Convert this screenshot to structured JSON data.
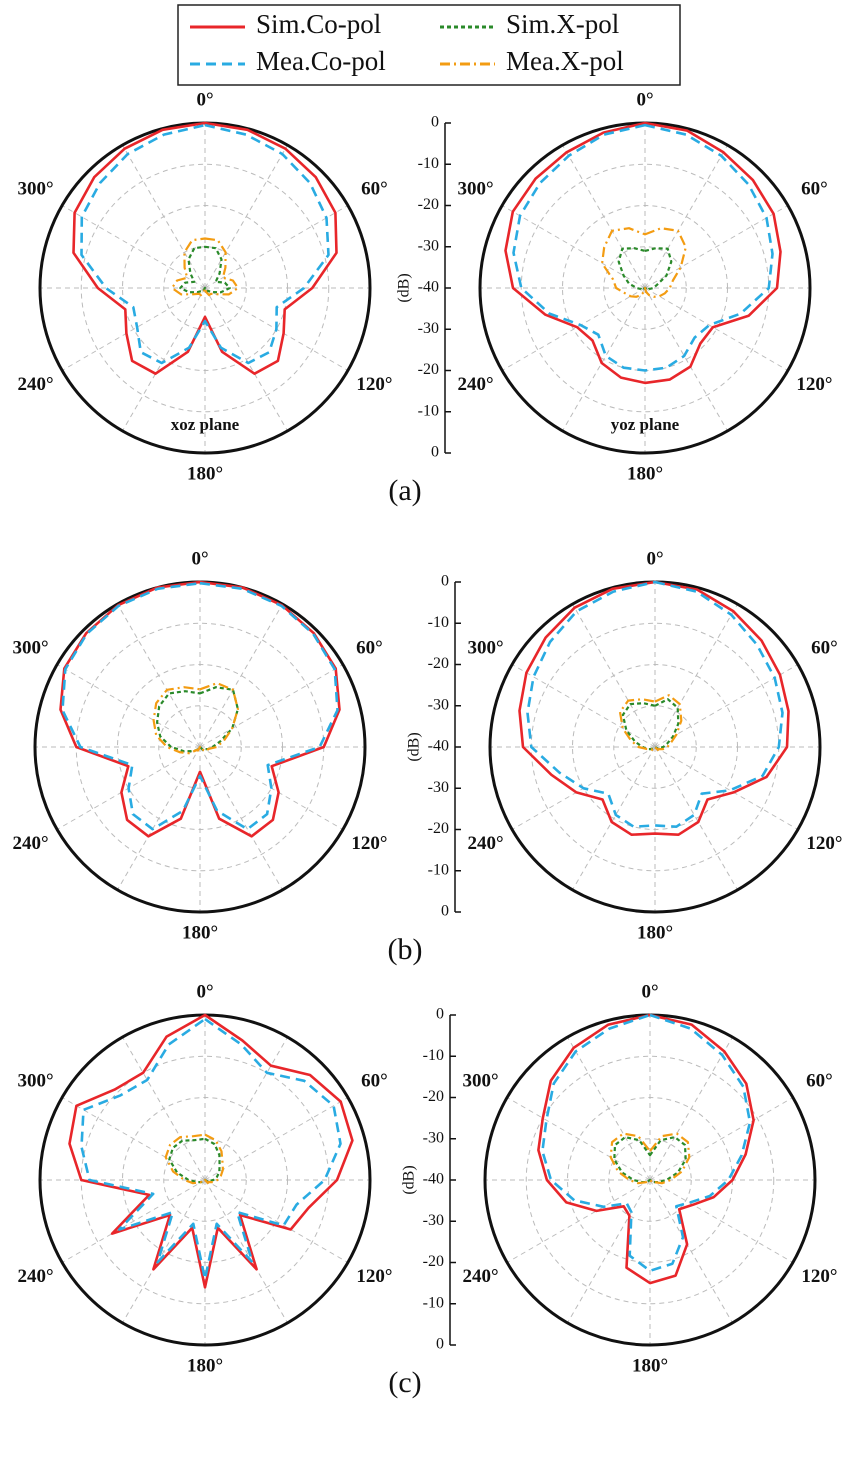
{
  "chart_data": [
    {
      "type": "polar",
      "subtitle": "xoz plane",
      "caption": "(a)",
      "theta": [
        0,
        15,
        30,
        45,
        60,
        75,
        90,
        105,
        120,
        135,
        150,
        165,
        180,
        195,
        210,
        225,
        240,
        255,
        270,
        285,
        300,
        315,
        330,
        345
      ],
      "thetaticks": [
        {
          "value": 0,
          "label": "0°"
        },
        {
          "value": 60,
          "label": "60°"
        },
        {
          "value": 120,
          "label": "120°"
        },
        {
          "value": 180,
          "label": "180°"
        },
        {
          "value": 240,
          "label": "240°"
        },
        {
          "value": 300,
          "label": "300°"
        }
      ],
      "rlim": [
        -40,
        0
      ],
      "rticks": [
        0,
        -10,
        -20,
        -30,
        -40
      ],
      "show_r_axis": false,
      "series": [
        {
          "name": "Sim.Co-pol",
          "color": "#e8262a",
          "dash": "solid",
          "values": [
            0,
            -0.3,
            -1,
            -2,
            -3.5,
            -7,
            -14,
            -20,
            -18,
            -15,
            -16,
            -24,
            -33,
            -24,
            -16,
            -15,
            -18,
            -20,
            -14,
            -7,
            -3.5,
            -2,
            -1,
            -0.3
          ]
        },
        {
          "name": "Mea.Co-pol",
          "color": "#29abe2",
          "dash": "dashed",
          "values": [
            -0.5,
            -1.5,
            -2.5,
            -4,
            -6,
            -9,
            -16,
            -22,
            -20,
            -18,
            -19,
            -25,
            -32,
            -25,
            -19,
            -18,
            -21,
            -22,
            -16,
            -9,
            -5.5,
            -4,
            -2.5,
            -1.5
          ]
        },
        {
          "name": "Sim.X-pol",
          "color": "#2a8a2a",
          "dash": "dotted",
          "values": [
            -30,
            -30,
            -32,
            -35,
            -37,
            -35,
            -34,
            -36,
            -38,
            -39,
            -39,
            -40,
            -40,
            -40,
            -39,
            -39,
            -38,
            -36,
            -34,
            -35,
            -37,
            -35,
            -32,
            -30
          ]
        },
        {
          "name": "Mea.X-pol",
          "color": "#f39c12",
          "dash": "dashdot",
          "values": [
            -28,
            -28,
            -30,
            -33,
            -35,
            -33,
            -32,
            -34,
            -37,
            -38,
            -38,
            -39,
            -40,
            -39,
            -38,
            -38,
            -37,
            -34,
            -32,
            -33,
            -35,
            -33,
            -30,
            -28
          ]
        }
      ]
    },
    {
      "type": "polar",
      "subtitle": "yoz plane",
      "r_label": "(dB)",
      "theta": [
        0,
        15,
        30,
        45,
        60,
        75,
        90,
        105,
        120,
        135,
        150,
        165,
        180,
        195,
        210,
        225,
        240,
        255,
        270,
        285,
        300,
        315,
        330,
        345
      ],
      "thetaticks": [
        {
          "value": 0,
          "label": "0°"
        },
        {
          "value": 60,
          "label": "60°"
        },
        {
          "value": 120,
          "label": "120°"
        },
        {
          "value": 180,
          "label": "180°"
        },
        {
          "value": 240,
          "label": "240°"
        },
        {
          "value": 300,
          "label": "300°"
        }
      ],
      "rlim": [
        -40,
        0
      ],
      "rticks": [
        0,
        -10,
        -20,
        -30,
        -40
      ],
      "show_r_axis": true,
      "series": [
        {
          "color": "#e8262a",
          "dash": "solid",
          "values": [
            0,
            -0.5,
            -2,
            -3,
            -4,
            -6,
            -8,
            -14,
            -21,
            -21,
            -18,
            -17,
            -17,
            -17.5,
            -19,
            -22,
            -21,
            -15,
            -8,
            -5,
            -3,
            -2.5,
            -2,
            -1
          ]
        },
        {
          "color": "#29abe2",
          "dash": "dashed",
          "values": [
            -0.5,
            -1.5,
            -3,
            -4.5,
            -6,
            -8,
            -10,
            -16,
            -22,
            -23,
            -21,
            -20,
            -20,
            -20,
            -21,
            -24,
            -22,
            -16,
            -10,
            -7,
            -5,
            -4,
            -3,
            -1.5
          ]
        },
        {
          "color": "#2a8a2a",
          "dash": "dotted",
          "values": [
            -31,
            -30,
            -29,
            -31,
            -34,
            -37,
            -38,
            -39,
            -39,
            -40,
            -40,
            -40,
            -40,
            -40,
            -40,
            -40,
            -39,
            -39,
            -38,
            -36,
            -34,
            -31,
            -29,
            -30
          ]
        },
        {
          "color": "#f39c12",
          "dash": "dashdot",
          "values": [
            -27,
            -25,
            -24,
            -26,
            -30,
            -33,
            -34,
            -35,
            -36,
            -37,
            -38,
            -39,
            -40,
            -39,
            -38,
            -37,
            -36,
            -35,
            -33,
            -32,
            -28,
            -26,
            -24,
            -25
          ]
        }
      ]
    },
    {
      "type": "polar",
      "caption": "(b)",
      "theta": [
        0,
        15,
        30,
        45,
        60,
        75,
        90,
        105,
        120,
        135,
        150,
        165,
        180,
        195,
        210,
        225,
        240,
        255,
        270,
        285,
        300,
        315,
        330,
        345
      ],
      "thetaticks": [
        {
          "value": 0,
          "label": "0°"
        },
        {
          "value": 60,
          "label": "60°"
        },
        {
          "value": 120,
          "label": "120°"
        },
        {
          "value": 180,
          "label": "180°"
        },
        {
          "value": 240,
          "label": "240°"
        },
        {
          "value": 300,
          "label": "300°"
        }
      ],
      "rlim": [
        -40,
        0
      ],
      "rticks": [
        0,
        -10,
        -20,
        -30,
        -40
      ],
      "show_r_axis": false,
      "series": [
        {
          "color": "#e8262a",
          "dash": "solid",
          "values": [
            0,
            0,
            -0.3,
            -1,
            -2,
            -5,
            -10,
            -22,
            -18,
            -15,
            -15,
            -22,
            -34,
            -22,
            -15,
            -15,
            -18,
            -22,
            -10,
            -5,
            -2,
            -1,
            -0.3,
            0
          ]
        },
        {
          "color": "#29abe2",
          "dash": "dashed",
          "values": [
            -0.3,
            -0.3,
            -0.5,
            -1.2,
            -2.3,
            -5.5,
            -11,
            -23,
            -20,
            -17,
            -17,
            -24,
            -33,
            -24,
            -17,
            -17,
            -20,
            -23,
            -11,
            -5.5,
            -2.3,
            -1.2,
            -0.5,
            -0.3
          ]
        },
        {
          "color": "#2a8a2a",
          "dash": "dotted",
          "values": [
            -27,
            -25,
            -24,
            -27,
            -31,
            -35,
            -37,
            -38,
            -39,
            -39,
            -40,
            -40,
            -40,
            -40,
            -40,
            -39,
            -38,
            -36,
            -33,
            -30,
            -28,
            -26,
            -25,
            -26
          ]
        },
        {
          "color": "#f39c12",
          "dash": "dashdot",
          "values": [
            -26,
            -24,
            -24,
            -27,
            -31,
            -34,
            -36,
            -38,
            -38,
            -39,
            -39,
            -40,
            -40,
            -40,
            -39,
            -39,
            -37,
            -35,
            -32,
            -29,
            -27,
            -25,
            -24,
            -25
          ]
        }
      ]
    },
    {
      "type": "polar",
      "r_label": "(dB)",
      "theta": [
        0,
        15,
        30,
        45,
        60,
        75,
        90,
        105,
        120,
        135,
        150,
        165,
        180,
        195,
        210,
        225,
        240,
        255,
        270,
        285,
        300,
        315,
        330,
        345
      ],
      "thetaticks": [
        {
          "value": 0,
          "label": "0°"
        },
        {
          "value": 60,
          "label": "60°"
        },
        {
          "value": 120,
          "label": "120°"
        },
        {
          "value": 180,
          "label": "180°"
        },
        {
          "value": 240,
          "label": "240°"
        },
        {
          "value": 300,
          "label": "300°"
        }
      ],
      "rlim": [
        -40,
        0
      ],
      "rticks": [
        0,
        -10,
        -20,
        -30,
        -40
      ],
      "show_r_axis": true,
      "series": [
        {
          "color": "#e8262a",
          "dash": "solid",
          "values": [
            0,
            -0.5,
            -2,
            -3.5,
            -5,
            -6.5,
            -8,
            -12,
            -18,
            -22,
            -19,
            -18,
            -19,
            -18,
            -19,
            -22,
            -18,
            -14,
            -8,
            -6,
            -4,
            -2.5,
            -1,
            -0.3
          ]
        },
        {
          "color": "#29abe2",
          "dash": "dashed",
          "values": [
            0,
            -1,
            -3,
            -5,
            -6.5,
            -8,
            -10,
            -13,
            -19,
            -24,
            -21,
            -20,
            -21,
            -20,
            -21,
            -24,
            -20,
            -16,
            -10,
            -8,
            -6,
            -4,
            -2,
            -1
          ]
        },
        {
          "color": "#2a8a2a",
          "dash": "dotted",
          "values": [
            -30,
            -28,
            -29,
            -32,
            -35,
            -37,
            -38,
            -39,
            -39,
            -40,
            -40,
            -40,
            -40,
            -40,
            -40,
            -40,
            -39,
            -38,
            -37,
            -35,
            -32,
            -29,
            -28,
            -29
          ]
        },
        {
          "color": "#f39c12",
          "dash": "dashdot",
          "values": [
            -29,
            -27,
            -28,
            -31,
            -34,
            -36,
            -37,
            -38,
            -39,
            -39,
            -40,
            -40,
            -40,
            -40,
            -40,
            -39,
            -39,
            -38,
            -36,
            -34,
            -31,
            -28,
            -27,
            -28
          ]
        }
      ]
    },
    {
      "type": "polar",
      "caption": "(c)",
      "theta": [
        0,
        15,
        30,
        45,
        60,
        75,
        90,
        105,
        120,
        135,
        150,
        165,
        180,
        195,
        210,
        225,
        240,
        255,
        270,
        285,
        300,
        315,
        330,
        345
      ],
      "thetaticks": [
        {
          "value": 0,
          "label": "0°"
        },
        {
          "value": 60,
          "label": "60°"
        },
        {
          "value": 120,
          "label": "120°"
        },
        {
          "value": 180,
          "label": "180°"
        },
        {
          "value": 240,
          "label": "240°"
        },
        {
          "value": 300,
          "label": "300°"
        }
      ],
      "rlim": [
        -40,
        0
      ],
      "rticks": [
        0,
        -10,
        -20,
        -30,
        -40
      ],
      "show_r_axis": false,
      "series": [
        {
          "color": "#e8262a",
          "dash": "solid",
          "values": [
            0,
            -5,
            -8,
            -4,
            -2,
            -3,
            -8,
            -14,
            -16,
            -28,
            -15,
            -28,
            -14,
            -28,
            -15,
            -28,
            -14,
            -26,
            -10,
            -6,
            -4,
            -9,
            -10,
            -4
          ]
        },
        {
          "color": "#29abe2",
          "dash": "dashed",
          "values": [
            -1,
            -6,
            -10,
            -6,
            -4,
            -6,
            -11,
            -17,
            -18,
            -29,
            -17,
            -29,
            -16,
            -29,
            -17,
            -29,
            -16,
            -27,
            -12,
            -9,
            -6,
            -11,
            -12,
            -6
          ]
        },
        {
          "color": "#2a8a2a",
          "dash": "dotted",
          "values": [
            -30,
            -31,
            -33,
            -35,
            -36,
            -37,
            -38,
            -39,
            -39,
            -40,
            -40,
            -40,
            -40,
            -40,
            -40,
            -40,
            -39,
            -38,
            -36,
            -33,
            -30,
            -29,
            -29,
            -30
          ]
        },
        {
          "color": "#f39c12",
          "dash": "dashdot",
          "values": [
            -29,
            -30,
            -32,
            -34,
            -35,
            -36,
            -37,
            -38,
            -39,
            -39,
            -40,
            -40,
            -40,
            -40,
            -40,
            -39,
            -39,
            -37,
            -35,
            -32,
            -29,
            -28,
            -28,
            -29
          ]
        }
      ]
    },
    {
      "type": "polar",
      "r_label": "(dB)",
      "theta": [
        0,
        15,
        30,
        45,
        60,
        75,
        90,
        105,
        120,
        135,
        150,
        165,
        180,
        195,
        210,
        225,
        240,
        255,
        270,
        285,
        300,
        315,
        330,
        345
      ],
      "thetaticks": [
        {
          "value": 0,
          "label": "0°"
        },
        {
          "value": 60,
          "label": "60°"
        },
        {
          "value": 120,
          "label": "120°"
        },
        {
          "value": 180,
          "label": "180°"
        },
        {
          "value": 240,
          "label": "240°"
        },
        {
          "value": 300,
          "label": "300°"
        }
      ],
      "rlim": [
        -40,
        0
      ],
      "rticks": [
        0,
        -10,
        -20,
        -30,
        -40
      ],
      "show_r_axis": true,
      "series": [
        {
          "color": "#e8262a",
          "dash": "solid",
          "values": [
            0,
            -1,
            -4,
            -7,
            -11,
            -16,
            -20,
            -24,
            -28,
            -30,
            -22,
            -16,
            -15,
            -18,
            -30,
            -31,
            -25,
            -19,
            -15,
            -12,
            -10,
            -6,
            -3,
            -1
          ]
        },
        {
          "color": "#29abe2",
          "dash": "dashed",
          "values": [
            0,
            -2,
            -5,
            -8,
            -12,
            -17,
            -21,
            -25,
            -29,
            -31,
            -24,
            -19,
            -18,
            -21,
            -31,
            -32,
            -27,
            -21,
            -16,
            -13,
            -11,
            -7,
            -4,
            -2
          ]
        },
        {
          "color": "#2a8a2a",
          "dash": "dotted",
          "values": [
            -34,
            -30,
            -28,
            -28,
            -30,
            -33,
            -36,
            -38,
            -39,
            -40,
            -40,
            -40,
            -40,
            -40,
            -40,
            -40,
            -39,
            -38,
            -36,
            -33,
            -30,
            -28,
            -28,
            -30
          ]
        },
        {
          "color": "#f39c12",
          "dash": "dashdot",
          "values": [
            -33,
            -29,
            -27,
            -27,
            -29,
            -32,
            -35,
            -37,
            -39,
            -39,
            -40,
            -40,
            -40,
            -40,
            -40,
            -40,
            -39,
            -37,
            -35,
            -32,
            -29,
            -27,
            -27,
            -29
          ]
        }
      ]
    }
  ]
}
